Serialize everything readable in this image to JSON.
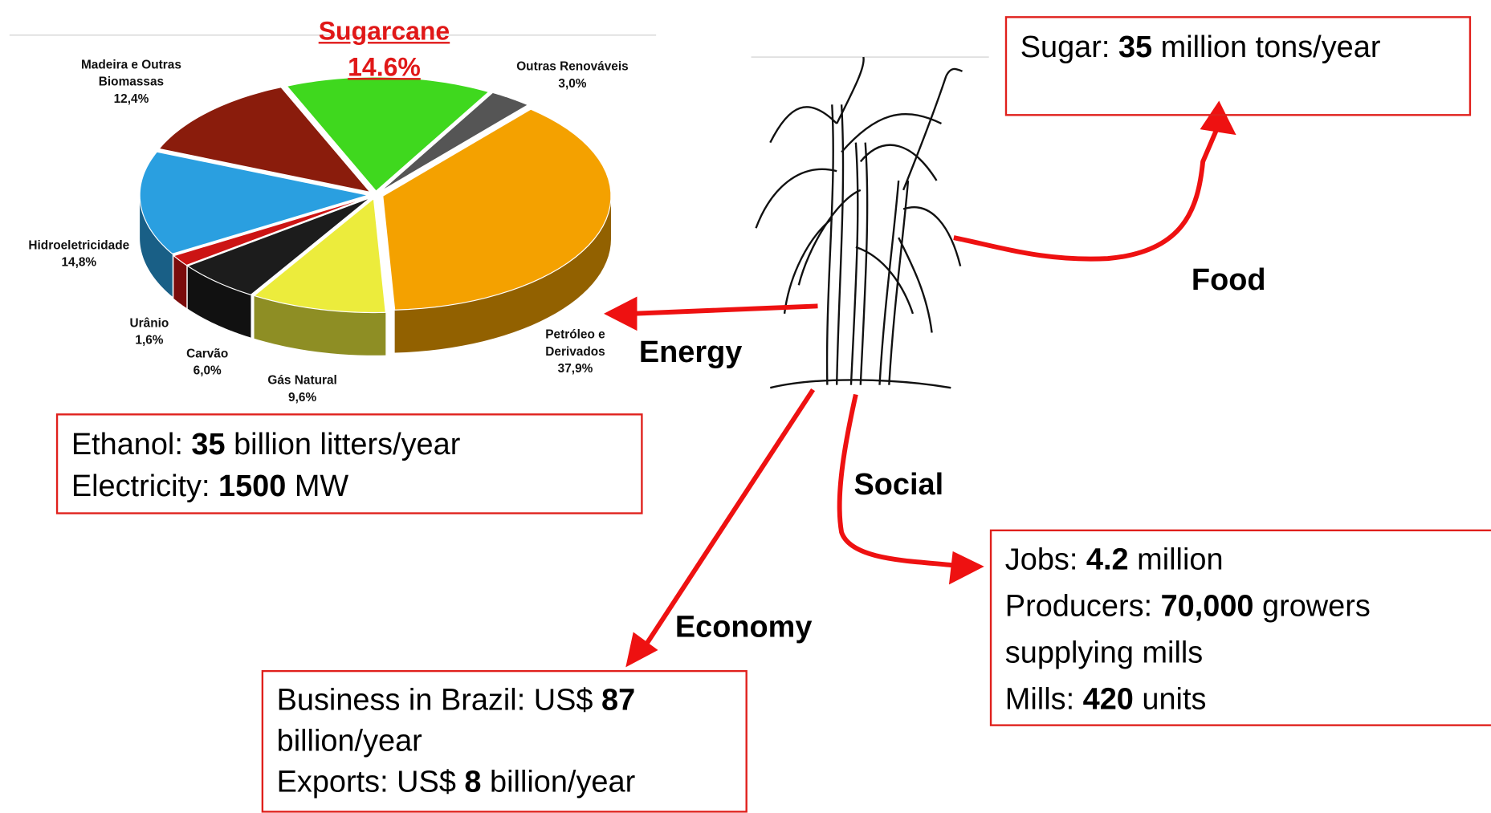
{
  "chart_data": {
    "type": "pie",
    "categories": [
      "Sugarcane",
      "Outras Renováveis",
      "Petróleo e Derivados",
      "Gás Natural",
      "Carvão",
      "Urânio",
      "Hidroeletricidade",
      "Madeira e Outras Biomassas"
    ],
    "values": [
      14.6,
      3.0,
      37.9,
      9.6,
      6.0,
      1.6,
      14.8,
      12.4
    ],
    "value_labels": [
      "14.6%",
      "3,0%",
      "37,9%",
      "9,6%",
      "6,0%",
      "1,6%",
      "14,8%",
      "12,4%"
    ],
    "colors": [
      "#3fd81e",
      "#555555",
      "#f4a100",
      "#ecec3c",
      "#1c1c1c",
      "#cc1414",
      "#2a9fe0",
      "#8a1c0c"
    ]
  },
  "arrows": {
    "energy": "Energy",
    "food": "Food",
    "social": "Social",
    "economy": "Economy"
  },
  "boxes": {
    "food": {
      "lines": [
        {
          "label": "Sugar:",
          "value": "35",
          "unit": "million tons/year"
        }
      ]
    },
    "energy": {
      "lines": [
        {
          "label": "Ethanol:",
          "value": "35",
          "unit": "billion litters/year"
        },
        {
          "label": "Electricity:",
          "value": "1500",
          "unit": "MW"
        }
      ]
    },
    "economy": {
      "lines": [
        {
          "label": "Business in Brazil: US$",
          "value": "87",
          "unit": "billion/year"
        },
        {
          "label": "Exports: US$",
          "value": "8",
          "unit": "billion/year"
        }
      ]
    },
    "social": {
      "lines": [
        {
          "label": "Jobs:",
          "value": "4.2",
          "unit": "million"
        },
        {
          "label": "Producers:",
          "value": "70,000",
          "unit": "growers supplying mills"
        },
        {
          "label": "Mills:",
          "value": "420",
          "unit": "units"
        }
      ]
    }
  }
}
